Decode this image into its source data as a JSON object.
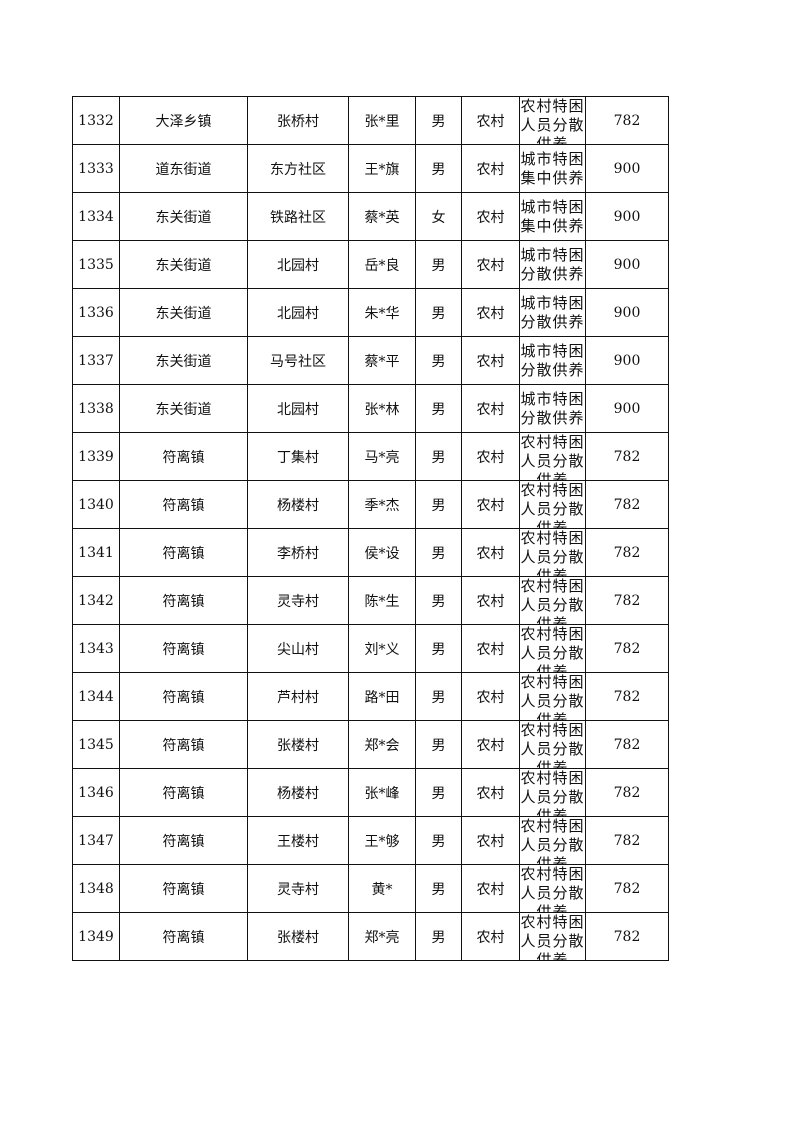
{
  "rows": [
    {
      "no": "1332",
      "town": "大泽乡镇",
      "village": "张桥村",
      "name": "张*里",
      "gender": "男",
      "area": "农村",
      "type": "农村特困人员分散供养",
      "amount": "782"
    },
    {
      "no": "1333",
      "town": "道东街道",
      "village": "东方社区",
      "name": "王*旗",
      "gender": "男",
      "area": "农村",
      "type": "城市特困集中供养",
      "amount": "900"
    },
    {
      "no": "1334",
      "town": "东关街道",
      "village": "铁路社区",
      "name": "蔡*英",
      "gender": "女",
      "area": "农村",
      "type": "城市特困集中供养",
      "amount": "900"
    },
    {
      "no": "1335",
      "town": "东关街道",
      "village": "北园村",
      "name": "岳*良",
      "gender": "男",
      "area": "农村",
      "type": "城市特困分散供养",
      "amount": "900"
    },
    {
      "no": "1336",
      "town": "东关街道",
      "village": "北园村",
      "name": "朱*华",
      "gender": "男",
      "area": "农村",
      "type": "城市特困分散供养",
      "amount": "900"
    },
    {
      "no": "1337",
      "town": "东关街道",
      "village": "马号社区",
      "name": "蔡*平",
      "gender": "男",
      "area": "农村",
      "type": "城市特困分散供养",
      "amount": "900"
    },
    {
      "no": "1338",
      "town": "东关街道",
      "village": "北园村",
      "name": "张*林",
      "gender": "男",
      "area": "农村",
      "type": "城市特困分散供养",
      "amount": "900"
    },
    {
      "no": "1339",
      "town": "符离镇",
      "village": "丁集村",
      "name": "马*亮",
      "gender": "男",
      "area": "农村",
      "type": "农村特困人员分散供养",
      "amount": "782"
    },
    {
      "no": "1340",
      "town": "符离镇",
      "village": "杨楼村",
      "name": "季*杰",
      "gender": "男",
      "area": "农村",
      "type": "农村特困人员分散供养",
      "amount": "782"
    },
    {
      "no": "1341",
      "town": "符离镇",
      "village": "李桥村",
      "name": "侯*设",
      "gender": "男",
      "area": "农村",
      "type": "农村特困人员分散供养",
      "amount": "782"
    },
    {
      "no": "1342",
      "town": "符离镇",
      "village": "灵寺村",
      "name": "陈*生",
      "gender": "男",
      "area": "农村",
      "type": "农村特困人员分散供养",
      "amount": "782"
    },
    {
      "no": "1343",
      "town": "符离镇",
      "village": "尖山村",
      "name": "刘*义",
      "gender": "男",
      "area": "农村",
      "type": "农村特困人员分散供养",
      "amount": "782"
    },
    {
      "no": "1344",
      "town": "符离镇",
      "village": "芦村村",
      "name": "路*田",
      "gender": "男",
      "area": "农村",
      "type": "农村特困人员分散供养",
      "amount": "782"
    },
    {
      "no": "1345",
      "town": "符离镇",
      "village": "张楼村",
      "name": "郑*会",
      "gender": "男",
      "area": "农村",
      "type": "农村特困人员分散供养",
      "amount": "782"
    },
    {
      "no": "1346",
      "town": "符离镇",
      "village": "杨楼村",
      "name": "张*峰",
      "gender": "男",
      "area": "农村",
      "type": "农村特困人员分散供养",
      "amount": "782"
    },
    {
      "no": "1347",
      "town": "符离镇",
      "village": "王楼村",
      "name": "王*够",
      "gender": "男",
      "area": "农村",
      "type": "农村特困人员分散供养",
      "amount": "782"
    },
    {
      "no": "1348",
      "town": "符离镇",
      "village": "灵寺村",
      "name": "黄*",
      "gender": "男",
      "area": "农村",
      "type": "农村特困人员分散供养",
      "amount": "782"
    },
    {
      "no": "1349",
      "town": "符离镇",
      "village": "张楼村",
      "name": "郑*亮",
      "gender": "男",
      "area": "农村",
      "type": "农村特困人员分散供养",
      "amount": "782"
    }
  ]
}
